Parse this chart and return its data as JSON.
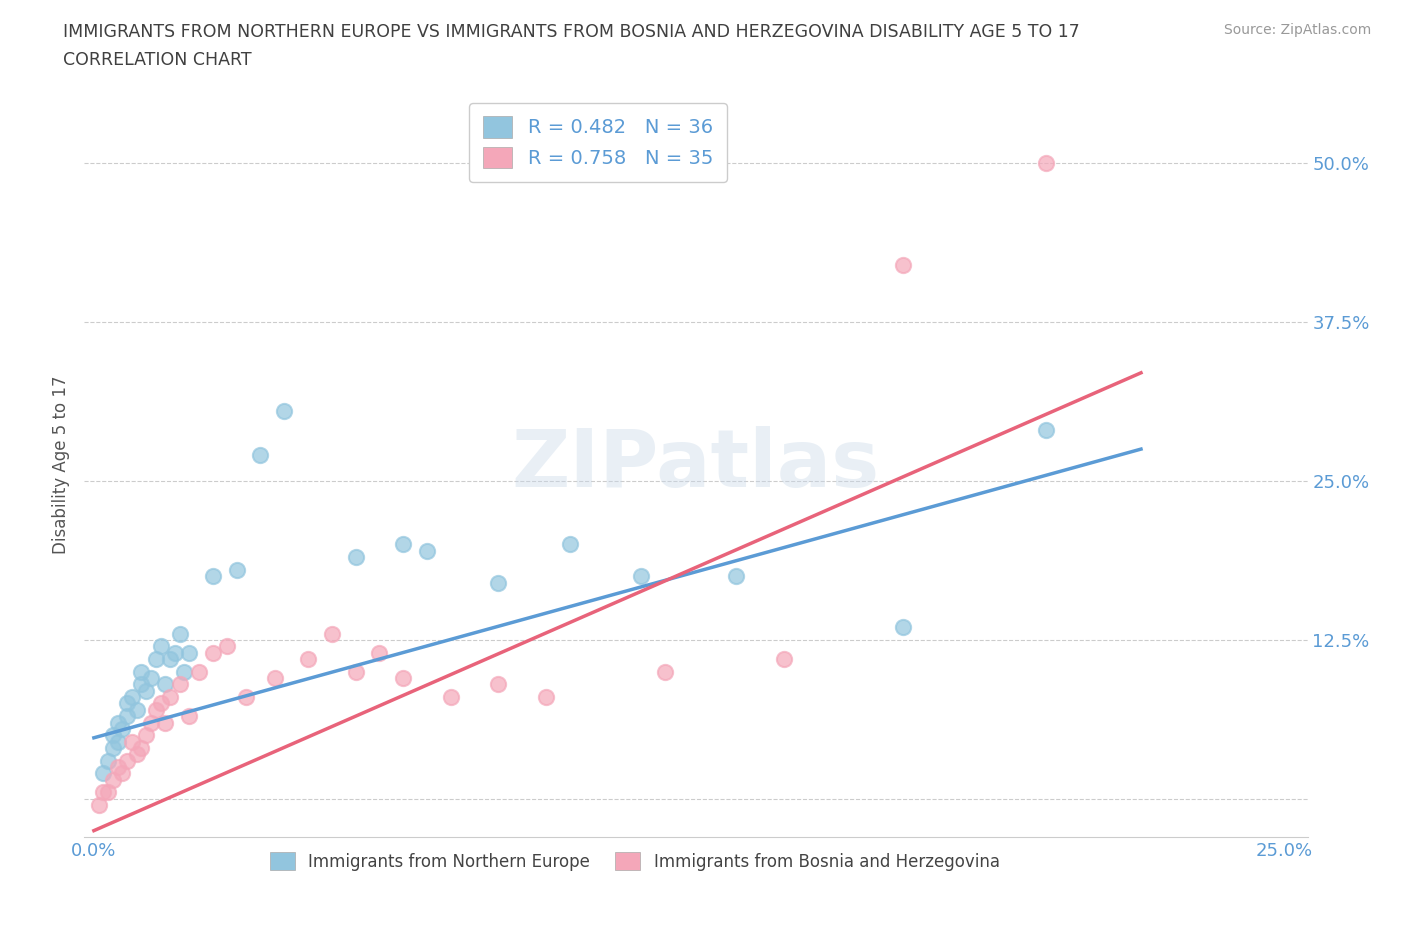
{
  "title_line1": "IMMIGRANTS FROM NORTHERN EUROPE VS IMMIGRANTS FROM BOSNIA AND HERZEGOVINA DISABILITY AGE 5 TO 17",
  "title_line2": "CORRELATION CHART",
  "source_text": "Source: ZipAtlas.com",
  "ylabel": "Disability Age 5 to 17",
  "blue_label": "Immigrants from Northern Europe",
  "pink_label": "Immigrants from Bosnia and Herzegovina",
  "blue_R": 0.482,
  "blue_N": 36,
  "pink_R": 0.758,
  "pink_N": 35,
  "xlim": [
    -0.002,
    0.255
  ],
  "ylim": [
    -0.03,
    0.555
  ],
  "x_ticks": [
    0.0,
    0.25
  ],
  "y_ticks": [
    0.125,
    0.25,
    0.375,
    0.5
  ],
  "blue_color": "#92c5de",
  "pink_color": "#f4a7b9",
  "blue_scatter_color": "#7ab8d4",
  "pink_scatter_color": "#f08080",
  "blue_line_color": "#5b9bd5",
  "pink_line_color": "#e8637a",
  "watermark": "ZIPatlas",
  "blue_scatter_x": [
    0.002,
    0.003,
    0.004,
    0.004,
    0.005,
    0.005,
    0.006,
    0.007,
    0.007,
    0.008,
    0.009,
    0.01,
    0.01,
    0.011,
    0.012,
    0.013,
    0.014,
    0.015,
    0.016,
    0.017,
    0.018,
    0.019,
    0.02,
    0.025,
    0.03,
    0.035,
    0.04,
    0.055,
    0.065,
    0.07,
    0.085,
    0.1,
    0.115,
    0.135,
    0.17,
    0.2
  ],
  "blue_scatter_y": [
    0.02,
    0.03,
    0.04,
    0.05,
    0.045,
    0.06,
    0.055,
    0.065,
    0.075,
    0.08,
    0.07,
    0.09,
    0.1,
    0.085,
    0.095,
    0.11,
    0.12,
    0.09,
    0.11,
    0.115,
    0.13,
    0.1,
    0.115,
    0.175,
    0.18,
    0.27,
    0.305,
    0.19,
    0.2,
    0.195,
    0.17,
    0.2,
    0.175,
    0.175,
    0.135,
    0.29
  ],
  "pink_scatter_x": [
    0.001,
    0.002,
    0.003,
    0.004,
    0.005,
    0.006,
    0.007,
    0.008,
    0.009,
    0.01,
    0.011,
    0.012,
    0.013,
    0.014,
    0.015,
    0.016,
    0.018,
    0.02,
    0.022,
    0.025,
    0.028,
    0.032,
    0.038,
    0.045,
    0.05,
    0.055,
    0.06,
    0.065,
    0.075,
    0.085,
    0.095,
    0.12,
    0.145,
    0.17,
    0.2
  ],
  "pink_scatter_y": [
    -0.005,
    0.005,
    0.005,
    0.015,
    0.025,
    0.02,
    0.03,
    0.045,
    0.035,
    0.04,
    0.05,
    0.06,
    0.07,
    0.075,
    0.06,
    0.08,
    0.09,
    0.065,
    0.1,
    0.115,
    0.12,
    0.08,
    0.095,
    0.11,
    0.13,
    0.1,
    0.115,
    0.095,
    0.08,
    0.09,
    0.08,
    0.1,
    0.11,
    0.42,
    0.5
  ],
  "blue_line_x": [
    0.0,
    0.22
  ],
  "blue_line_y": [
    0.048,
    0.275
  ],
  "pink_line_x": [
    0.0,
    0.22
  ],
  "pink_line_y": [
    -0.025,
    0.335
  ],
  "grid_color": "#cccccc",
  "background_color": "#ffffff",
  "title_color": "#404040",
  "axis_label_color": "#555555",
  "tick_color": "#5b9bd5",
  "source_color": "#999999"
}
